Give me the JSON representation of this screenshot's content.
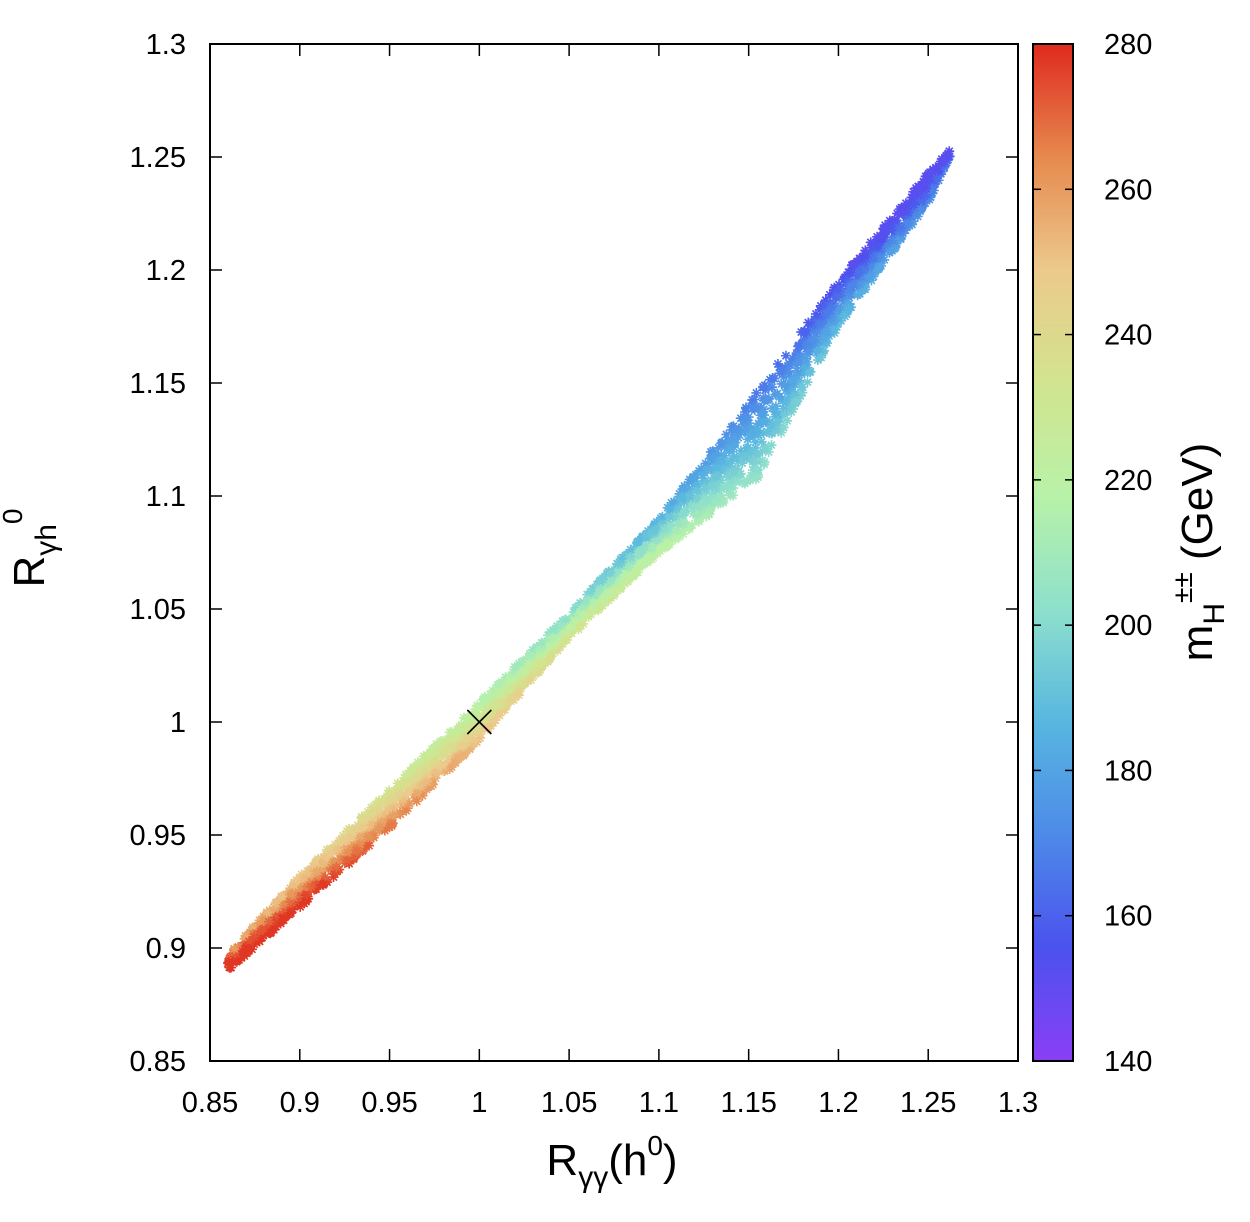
{
  "chart_data": {
    "type": "scatter",
    "title": "",
    "xlabel": {
      "base": "R",
      "sub": "γγ",
      "tail": "(h",
      "sup": "0",
      "close": ")"
    },
    "ylabel": {
      "base": "R",
      "sub": "γh",
      "sup": "0"
    },
    "colorbar_label": {
      "base": "m",
      "sub": "H",
      "sup": "±±",
      "tail": " (GeV)"
    },
    "xlim": [
      0.85,
      1.3
    ],
    "ylim": [
      0.85,
      1.3
    ],
    "clim": [
      140,
      280
    ],
    "xticks": [
      0.85,
      0.9,
      0.95,
      1,
      1.05,
      1.1,
      1.15,
      1.2,
      1.25,
      1.3
    ],
    "yticks": [
      0.85,
      0.9,
      0.95,
      1,
      1.05,
      1.1,
      1.15,
      1.2,
      1.25,
      1.3
    ],
    "cticks": [
      140,
      160,
      180,
      200,
      220,
      240,
      260,
      280
    ],
    "xtick_labels": [
      "0.85",
      "0.9",
      "0.95",
      "1",
      "1.05",
      "1.1",
      "1.15",
      "1.2",
      "1.25",
      "1.3"
    ],
    "ytick_labels": [
      "0.85",
      "0.9",
      "0.95",
      "1",
      "1.05",
      "1.1",
      "1.15",
      "1.2",
      "1.25",
      "1.3"
    ],
    "ctick_labels": [
      "140",
      "160",
      "180",
      "200",
      "220",
      "240",
      "260",
      "280"
    ],
    "colormap": [
      "#8a3ff5",
      "#4b52ee",
      "#4d8ae8",
      "#58b6e0",
      "#8ee0cc",
      "#b8f2a8",
      "#d2e48e",
      "#ecc98c",
      "#e6894e",
      "#df2a1e"
    ],
    "marker": "asterisk",
    "band": {
      "description": "scatter band of parameter points; color = mH±± (GeV)",
      "mass_range": [
        152,
        278
      ],
      "x_at_mass_lo": 1.262,
      "x_at_mass_hi": 0.86,
      "upper_edge": [
        {
          "x": 0.86,
          "y": 0.897
        },
        {
          "x": 0.9,
          "y": 0.932
        },
        {
          "x": 0.95,
          "y": 0.97
        },
        {
          "x": 1.0,
          "y": 1.009
        },
        {
          "x": 1.05,
          "y": 1.048
        },
        {
          "x": 1.1,
          "y": 1.09
        },
        {
          "x": 1.15,
          "y": 1.141
        },
        {
          "x": 1.2,
          "y": 1.195
        },
        {
          "x": 1.25,
          "y": 1.243
        },
        {
          "x": 1.262,
          "y": 1.253
        }
      ],
      "lower_edge": [
        {
          "x": 0.86,
          "y": 0.89
        },
        {
          "x": 0.9,
          "y": 0.918
        },
        {
          "x": 0.95,
          "y": 0.953
        },
        {
          "x": 1.0,
          "y": 0.992
        },
        {
          "x": 1.05,
          "y": 1.037
        },
        {
          "x": 1.1,
          "y": 1.075
        },
        {
          "x": 1.155,
          "y": 1.108
        },
        {
          "x": 1.2,
          "y": 1.175
        },
        {
          "x": 1.25,
          "y": 1.23
        },
        {
          "x": 1.262,
          "y": 1.25
        }
      ]
    },
    "reference_point": {
      "x": 1.0,
      "y": 1.0,
      "marker": "x",
      "color": "#000000"
    }
  }
}
